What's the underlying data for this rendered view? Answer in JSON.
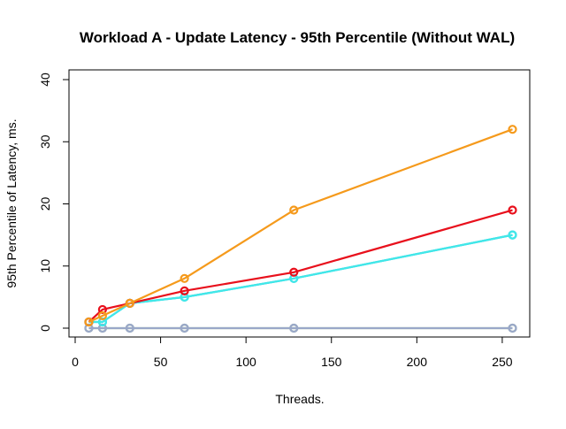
{
  "chart_data": {
    "type": "line",
    "title": "Workload A - Update Latency - 95th Percentile (Without WAL)",
    "xlabel": "Threads.",
    "ylabel": "95th Percentile of Latency, ms.",
    "xlim": [
      0,
      260
    ],
    "ylim": [
      0,
      40
    ],
    "xticks": [
      0,
      50,
      100,
      150,
      200,
      250
    ],
    "yticks": [
      0,
      10,
      20,
      30,
      40
    ],
    "grid": false,
    "legend": "none",
    "x": [
      8,
      16,
      32,
      64,
      128,
      256
    ],
    "series": [
      {
        "color": "#9abf9a",
        "values": [
          0,
          0,
          0,
          0,
          0,
          0
        ]
      },
      {
        "color": "#9aa8c8",
        "values": [
          0,
          0,
          0,
          0,
          0,
          0
        ]
      },
      {
        "color": "#2fb8e8",
        "values": [
          1,
          1,
          4,
          5,
          8,
          15
        ]
      },
      {
        "color": "#40e8e8",
        "values": [
          1,
          1,
          4,
          5,
          8,
          15
        ]
      },
      {
        "color": "#e8101c",
        "values": [
          1,
          3,
          4,
          6,
          9,
          19
        ]
      },
      {
        "color": "#f59a1c",
        "values": [
          1,
          2,
          4,
          8,
          19,
          32
        ]
      }
    ]
  }
}
